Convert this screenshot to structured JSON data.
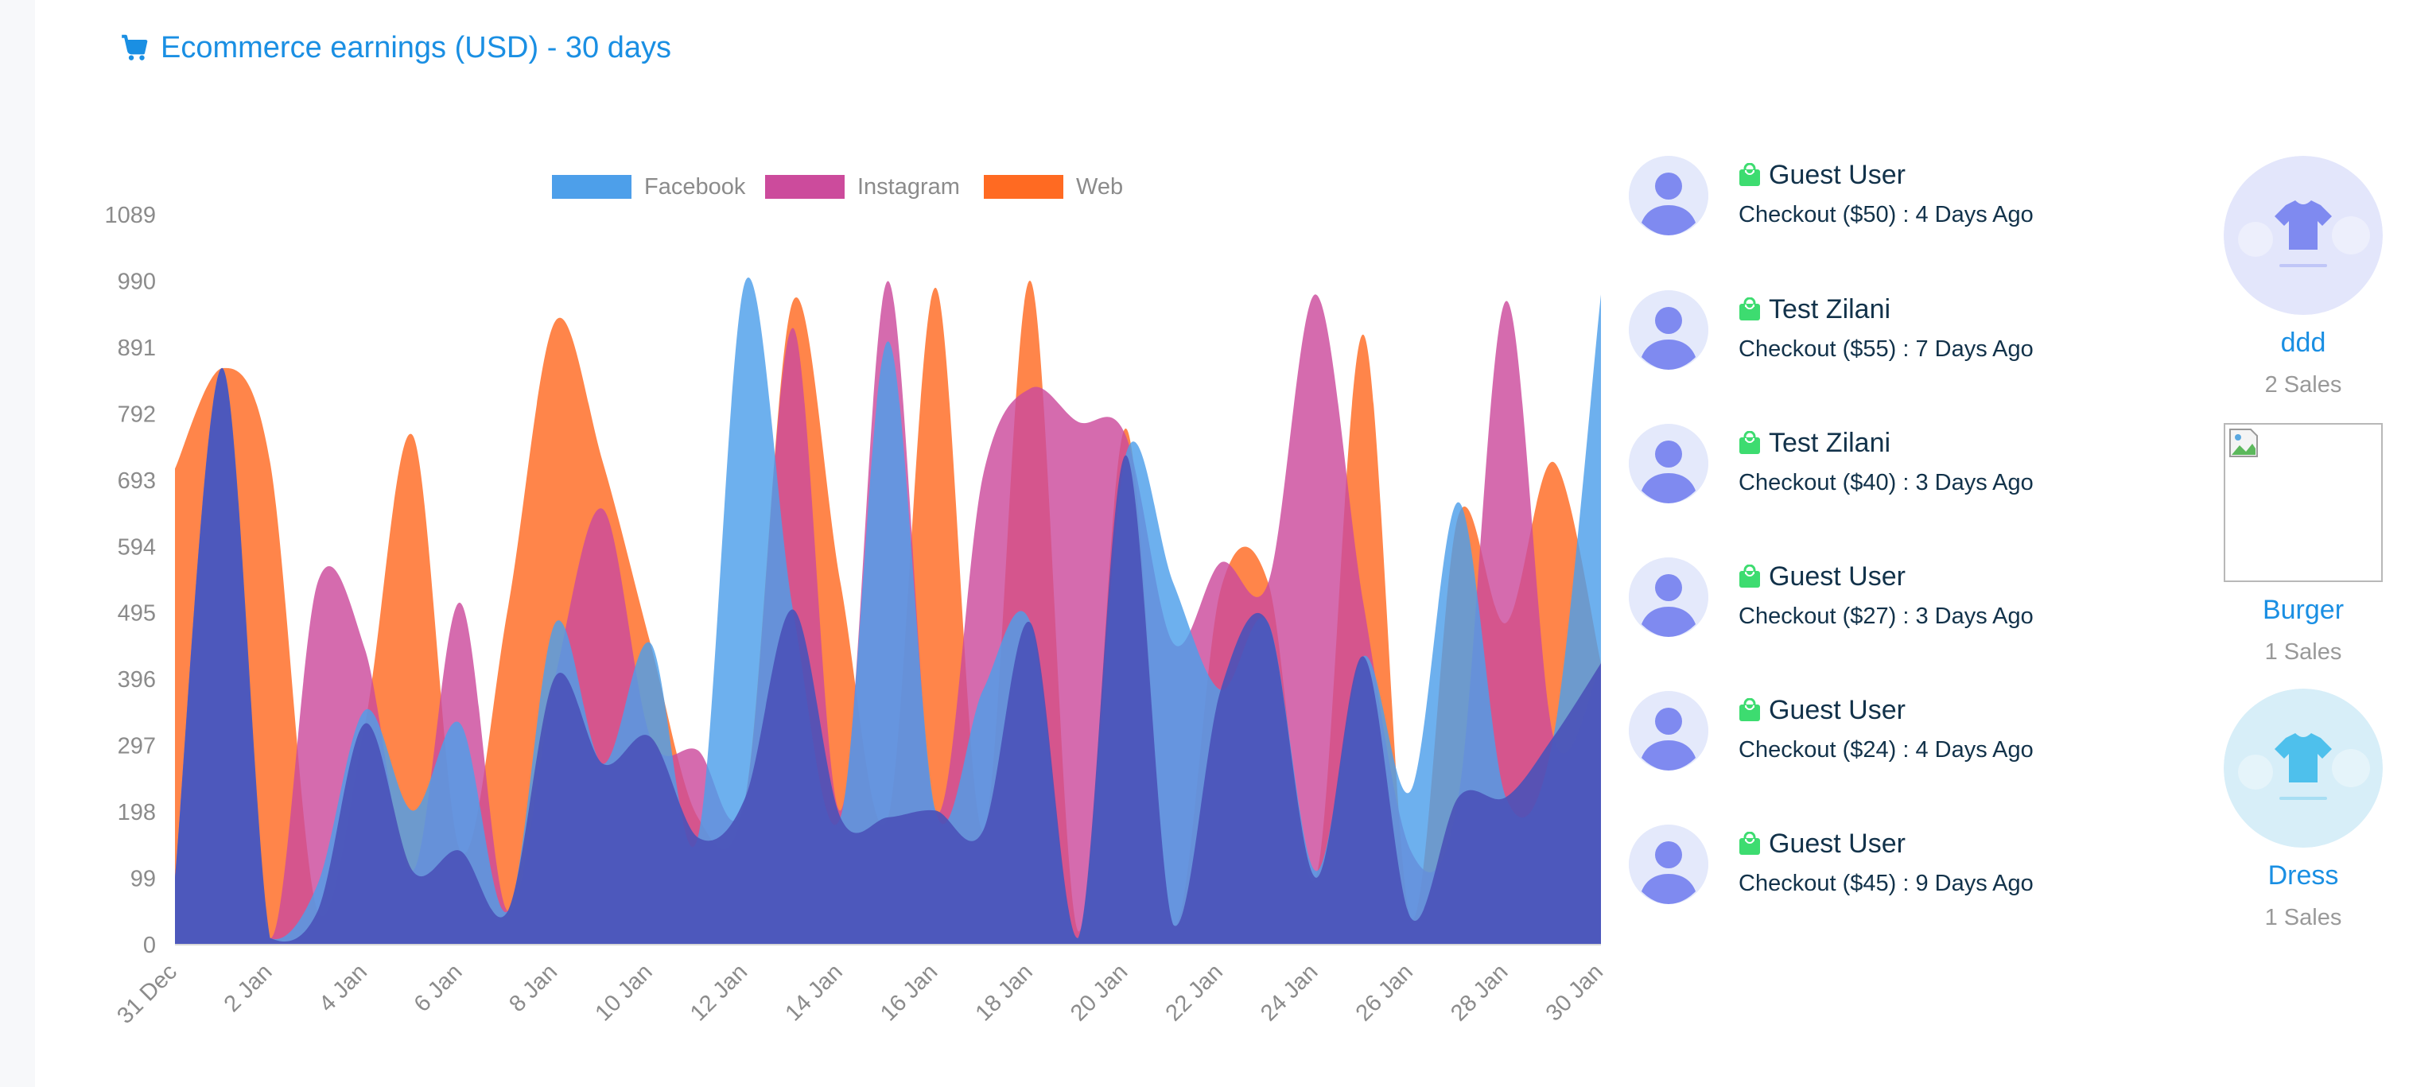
{
  "header": {
    "title": "Ecommerce earnings (USD) - 30 days",
    "icon": "cart-icon"
  },
  "colors": {
    "accent": "#1a8fe3",
    "facebook": "#4d9fea",
    "instagram": "#cc4b9c",
    "web": "#ff6a22",
    "blend": "#4a52b8"
  },
  "chart_data": {
    "type": "area",
    "x": [
      "31 Dec",
      "1 Jan",
      "2 Jan",
      "3 Jan",
      "4 Jan",
      "5 Jan",
      "6 Jan",
      "7 Jan",
      "8 Jan",
      "9 Jan",
      "10 Jan",
      "11 Jan",
      "12 Jan",
      "13 Jan",
      "14 Jan",
      "15 Jan",
      "16 Jan",
      "17 Jan",
      "18 Jan",
      "19 Jan",
      "20 Jan",
      "21 Jan",
      "22 Jan",
      "23 Jan",
      "24 Jan",
      "25 Jan",
      "26 Jan",
      "27 Jan",
      "28 Jan",
      "29 Jan",
      "30 Jan"
    ],
    "x_tick_labels": [
      "31 Dec",
      "2 Jan",
      "4 Jan",
      "6 Jan",
      "8 Jan",
      "10 Jan",
      "12 Jan",
      "14 Jan",
      "16 Jan",
      "18 Jan",
      "20 Jan",
      "22 Jan",
      "24 Jan",
      "26 Jan",
      "28 Jan",
      "30 Jan"
    ],
    "y_ticks": [
      0,
      99,
      198,
      297,
      396,
      495,
      594,
      693,
      792,
      891,
      990,
      1089
    ],
    "ylim": [
      0,
      1089
    ],
    "legend_position": "top",
    "series": [
      {
        "name": "Facebook",
        "color": "#4d9fea",
        "values": [
          100,
          860,
          10,
          90,
          350,
          200,
          330,
          50,
          480,
          270,
          450,
          160,
          990,
          500,
          190,
          900,
          200,
          380,
          480,
          10,
          730,
          540,
          380,
          480,
          110,
          430,
          230,
          660,
          220,
          310,
          970
        ]
      },
      {
        "name": "Instagram",
        "color": "#cc4b9c",
        "values": [
          100,
          860,
          10,
          540,
          440,
          110,
          510,
          50,
          400,
          650,
          310,
          290,
          220,
          920,
          200,
          990,
          200,
          700,
          830,
          780,
          760,
          450,
          570,
          540,
          970,
          510,
          140,
          220,
          960,
          310,
          420
        ]
      },
      {
        "name": "Web",
        "color": "#ff6a22",
        "values": [
          710,
          860,
          720,
          50,
          330,
          760,
          140,
          500,
          930,
          720,
          450,
          190,
          220,
          960,
          540,
          190,
          980,
          170,
          990,
          20,
          770,
          30,
          530,
          540,
          100,
          910,
          40,
          640,
          480,
          720,
          420
        ]
      }
    ]
  },
  "activity": [
    {
      "name": "Guest User",
      "detail": "Checkout ($50) : 4 Days Ago"
    },
    {
      "name": "Test Zilani",
      "detail": "Checkout ($55) : 7 Days Ago"
    },
    {
      "name": "Test Zilani",
      "detail": "Checkout ($40) : 3 Days Ago"
    },
    {
      "name": "Guest User",
      "detail": "Checkout ($27) : 3 Days Ago"
    },
    {
      "name": "Guest User",
      "detail": "Checkout ($24) : 4 Days Ago"
    },
    {
      "name": "Guest User",
      "detail": "Checkout ($45) : 9 Days Ago"
    }
  ],
  "products": [
    {
      "name": "ddd",
      "sales": "2 Sales"
    },
    {
      "name": "Burger",
      "sales": "1 Sales"
    },
    {
      "name": "Dress",
      "sales": "1 Sales"
    }
  ]
}
